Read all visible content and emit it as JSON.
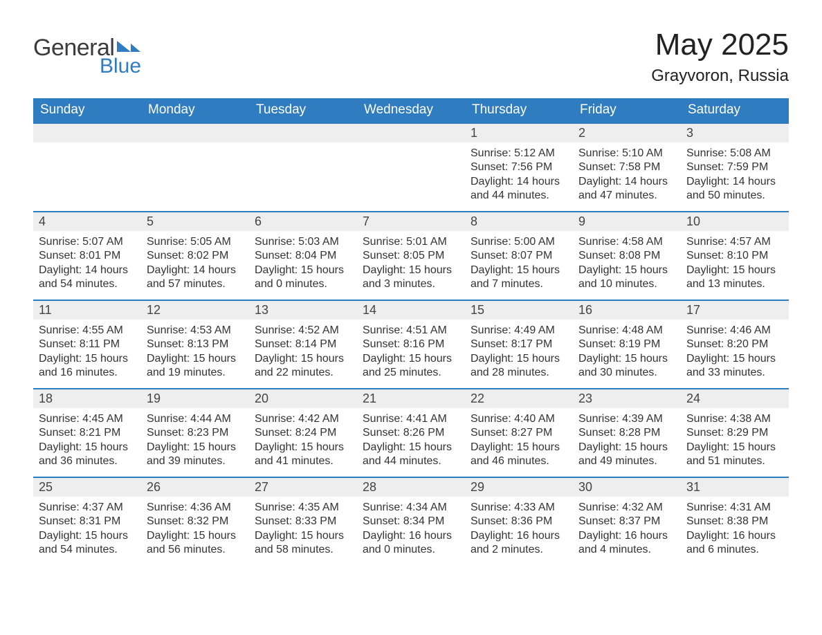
{
  "logo": {
    "text1": "General",
    "text2": "Blue",
    "color1": "#3b3b3b",
    "color2": "#2f7cc0"
  },
  "title": "May 2025",
  "location": "Grayvoron, Russia",
  "colors": {
    "header_bg": "#2f7cc0",
    "header_text": "#ffffff",
    "daynum_bg": "#eeeeee",
    "daynum_border": "#2f7cc0",
    "text": "#333333",
    "background": "#ffffff"
  },
  "fonts": {
    "title_size": 44,
    "location_size": 24,
    "weekday_size": 19,
    "daynum_size": 18,
    "body_size": 16
  },
  "weekdays": [
    "Sunday",
    "Monday",
    "Tuesday",
    "Wednesday",
    "Thursday",
    "Friday",
    "Saturday"
  ],
  "first_weekday_index": 4,
  "days": [
    {
      "n": 1,
      "sunrise": "5:12 AM",
      "sunset": "7:56 PM",
      "daylight": "14 hours and 44 minutes."
    },
    {
      "n": 2,
      "sunrise": "5:10 AM",
      "sunset": "7:58 PM",
      "daylight": "14 hours and 47 minutes."
    },
    {
      "n": 3,
      "sunrise": "5:08 AM",
      "sunset": "7:59 PM",
      "daylight": "14 hours and 50 minutes."
    },
    {
      "n": 4,
      "sunrise": "5:07 AM",
      "sunset": "8:01 PM",
      "daylight": "14 hours and 54 minutes."
    },
    {
      "n": 5,
      "sunrise": "5:05 AM",
      "sunset": "8:02 PM",
      "daylight": "14 hours and 57 minutes."
    },
    {
      "n": 6,
      "sunrise": "5:03 AM",
      "sunset": "8:04 PM",
      "daylight": "15 hours and 0 minutes."
    },
    {
      "n": 7,
      "sunrise": "5:01 AM",
      "sunset": "8:05 PM",
      "daylight": "15 hours and 3 minutes."
    },
    {
      "n": 8,
      "sunrise": "5:00 AM",
      "sunset": "8:07 PM",
      "daylight": "15 hours and 7 minutes."
    },
    {
      "n": 9,
      "sunrise": "4:58 AM",
      "sunset": "8:08 PM",
      "daylight": "15 hours and 10 minutes."
    },
    {
      "n": 10,
      "sunrise": "4:57 AM",
      "sunset": "8:10 PM",
      "daylight": "15 hours and 13 minutes."
    },
    {
      "n": 11,
      "sunrise": "4:55 AM",
      "sunset": "8:11 PM",
      "daylight": "15 hours and 16 minutes."
    },
    {
      "n": 12,
      "sunrise": "4:53 AM",
      "sunset": "8:13 PM",
      "daylight": "15 hours and 19 minutes."
    },
    {
      "n": 13,
      "sunrise": "4:52 AM",
      "sunset": "8:14 PM",
      "daylight": "15 hours and 22 minutes."
    },
    {
      "n": 14,
      "sunrise": "4:51 AM",
      "sunset": "8:16 PM",
      "daylight": "15 hours and 25 minutes."
    },
    {
      "n": 15,
      "sunrise": "4:49 AM",
      "sunset": "8:17 PM",
      "daylight": "15 hours and 28 minutes."
    },
    {
      "n": 16,
      "sunrise": "4:48 AM",
      "sunset": "8:19 PM",
      "daylight": "15 hours and 30 minutes."
    },
    {
      "n": 17,
      "sunrise": "4:46 AM",
      "sunset": "8:20 PM",
      "daylight": "15 hours and 33 minutes."
    },
    {
      "n": 18,
      "sunrise": "4:45 AM",
      "sunset": "8:21 PM",
      "daylight": "15 hours and 36 minutes."
    },
    {
      "n": 19,
      "sunrise": "4:44 AM",
      "sunset": "8:23 PM",
      "daylight": "15 hours and 39 minutes."
    },
    {
      "n": 20,
      "sunrise": "4:42 AM",
      "sunset": "8:24 PM",
      "daylight": "15 hours and 41 minutes."
    },
    {
      "n": 21,
      "sunrise": "4:41 AM",
      "sunset": "8:26 PM",
      "daylight": "15 hours and 44 minutes."
    },
    {
      "n": 22,
      "sunrise": "4:40 AM",
      "sunset": "8:27 PM",
      "daylight": "15 hours and 46 minutes."
    },
    {
      "n": 23,
      "sunrise": "4:39 AM",
      "sunset": "8:28 PM",
      "daylight": "15 hours and 49 minutes."
    },
    {
      "n": 24,
      "sunrise": "4:38 AM",
      "sunset": "8:29 PM",
      "daylight": "15 hours and 51 minutes."
    },
    {
      "n": 25,
      "sunrise": "4:37 AM",
      "sunset": "8:31 PM",
      "daylight": "15 hours and 54 minutes."
    },
    {
      "n": 26,
      "sunrise": "4:36 AM",
      "sunset": "8:32 PM",
      "daylight": "15 hours and 56 minutes."
    },
    {
      "n": 27,
      "sunrise": "4:35 AM",
      "sunset": "8:33 PM",
      "daylight": "15 hours and 58 minutes."
    },
    {
      "n": 28,
      "sunrise": "4:34 AM",
      "sunset": "8:34 PM",
      "daylight": "16 hours and 0 minutes."
    },
    {
      "n": 29,
      "sunrise": "4:33 AM",
      "sunset": "8:36 PM",
      "daylight": "16 hours and 2 minutes."
    },
    {
      "n": 30,
      "sunrise": "4:32 AM",
      "sunset": "8:37 PM",
      "daylight": "16 hours and 4 minutes."
    },
    {
      "n": 31,
      "sunrise": "4:31 AM",
      "sunset": "8:38 PM",
      "daylight": "16 hours and 6 minutes."
    }
  ],
  "labels": {
    "sunrise": "Sunrise:",
    "sunset": "Sunset:",
    "daylight": "Daylight:"
  }
}
